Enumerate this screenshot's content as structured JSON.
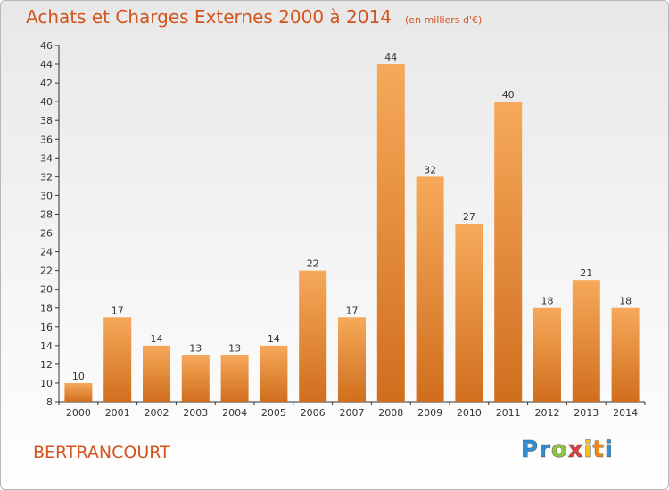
{
  "title": "Achats et Charges Externes 2000 à 2014",
  "unit": "(en milliers d'€)",
  "commune": "BERTRANCOURT",
  "logo": {
    "letters": [
      {
        "char": "P",
        "color": "#2e8fd6"
      },
      {
        "char": "r",
        "color": "#2e8fd6"
      },
      {
        "char": "o",
        "color": "#8cc63f"
      },
      {
        "char": "x",
        "color": "#e23c3c"
      },
      {
        "char": "i",
        "color": "#f4c21b"
      },
      {
        "char": "t",
        "color": "#f08a1c"
      },
      {
        "char": "i",
        "color": "#2e8fd6"
      }
    ]
  },
  "colors": {
    "title": "#d2541e",
    "bar_light": "#f6a95a",
    "bar_dark": "#d06e1e"
  },
  "chart_data": {
    "type": "bar",
    "categories": [
      "2000",
      "2001",
      "2002",
      "2003",
      "2004",
      "2005",
      "2006",
      "2007",
      "2008",
      "2009",
      "2010",
      "2011",
      "2012",
      "2013",
      "2014"
    ],
    "values": [
      10,
      17,
      14,
      13,
      13,
      14,
      22,
      17,
      44,
      32,
      27,
      40,
      18,
      21,
      18
    ],
    "ylim": [
      8,
      46
    ],
    "yticks": [
      8,
      10,
      12,
      14,
      16,
      18,
      20,
      22,
      24,
      26,
      28,
      30,
      32,
      34,
      36,
      38,
      40,
      42,
      44,
      46
    ],
    "grid": false,
    "data_labels": true
  }
}
